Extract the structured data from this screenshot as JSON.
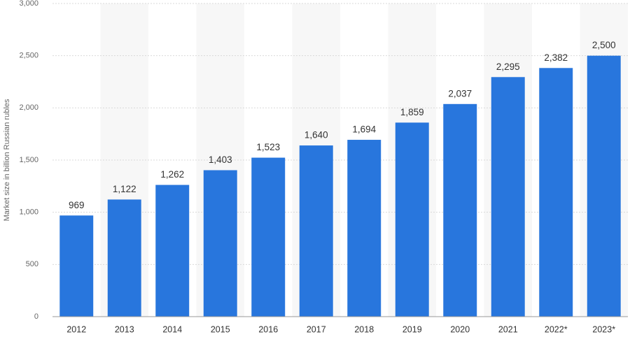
{
  "chart_data": {
    "type": "bar",
    "y_label": "Market size in billion Russian rubles",
    "categories": [
      "2012",
      "2013",
      "2014",
      "2015",
      "2016",
      "2017",
      "2018",
      "2019",
      "2020",
      "2021",
      "2022*",
      "2023*"
    ],
    "values": [
      969,
      1122,
      1262,
      1403,
      1523,
      1640,
      1694,
      1859,
      2037,
      2295,
      2382,
      2500
    ],
    "value_labels": [
      "969",
      "1,122",
      "1,262",
      "1,403",
      "1,523",
      "1,640",
      "1,694",
      "1,859",
      "2,037",
      "2,295",
      "2,382",
      "2,500"
    ],
    "color": "#2876dd",
    "ylim": [
      0,
      3000
    ],
    "yticks": [
      0,
      500,
      {
        "value": 1000,
        "label": "1,000"
      },
      {
        "value": 1500,
        "label": "1,500"
      },
      {
        "value": 2000,
        "label": "2,000"
      },
      {
        "value": 2500,
        "label": "2,500"
      },
      {
        "value": 3000,
        "label": "3,000"
      }
    ],
    "grid": true
  }
}
